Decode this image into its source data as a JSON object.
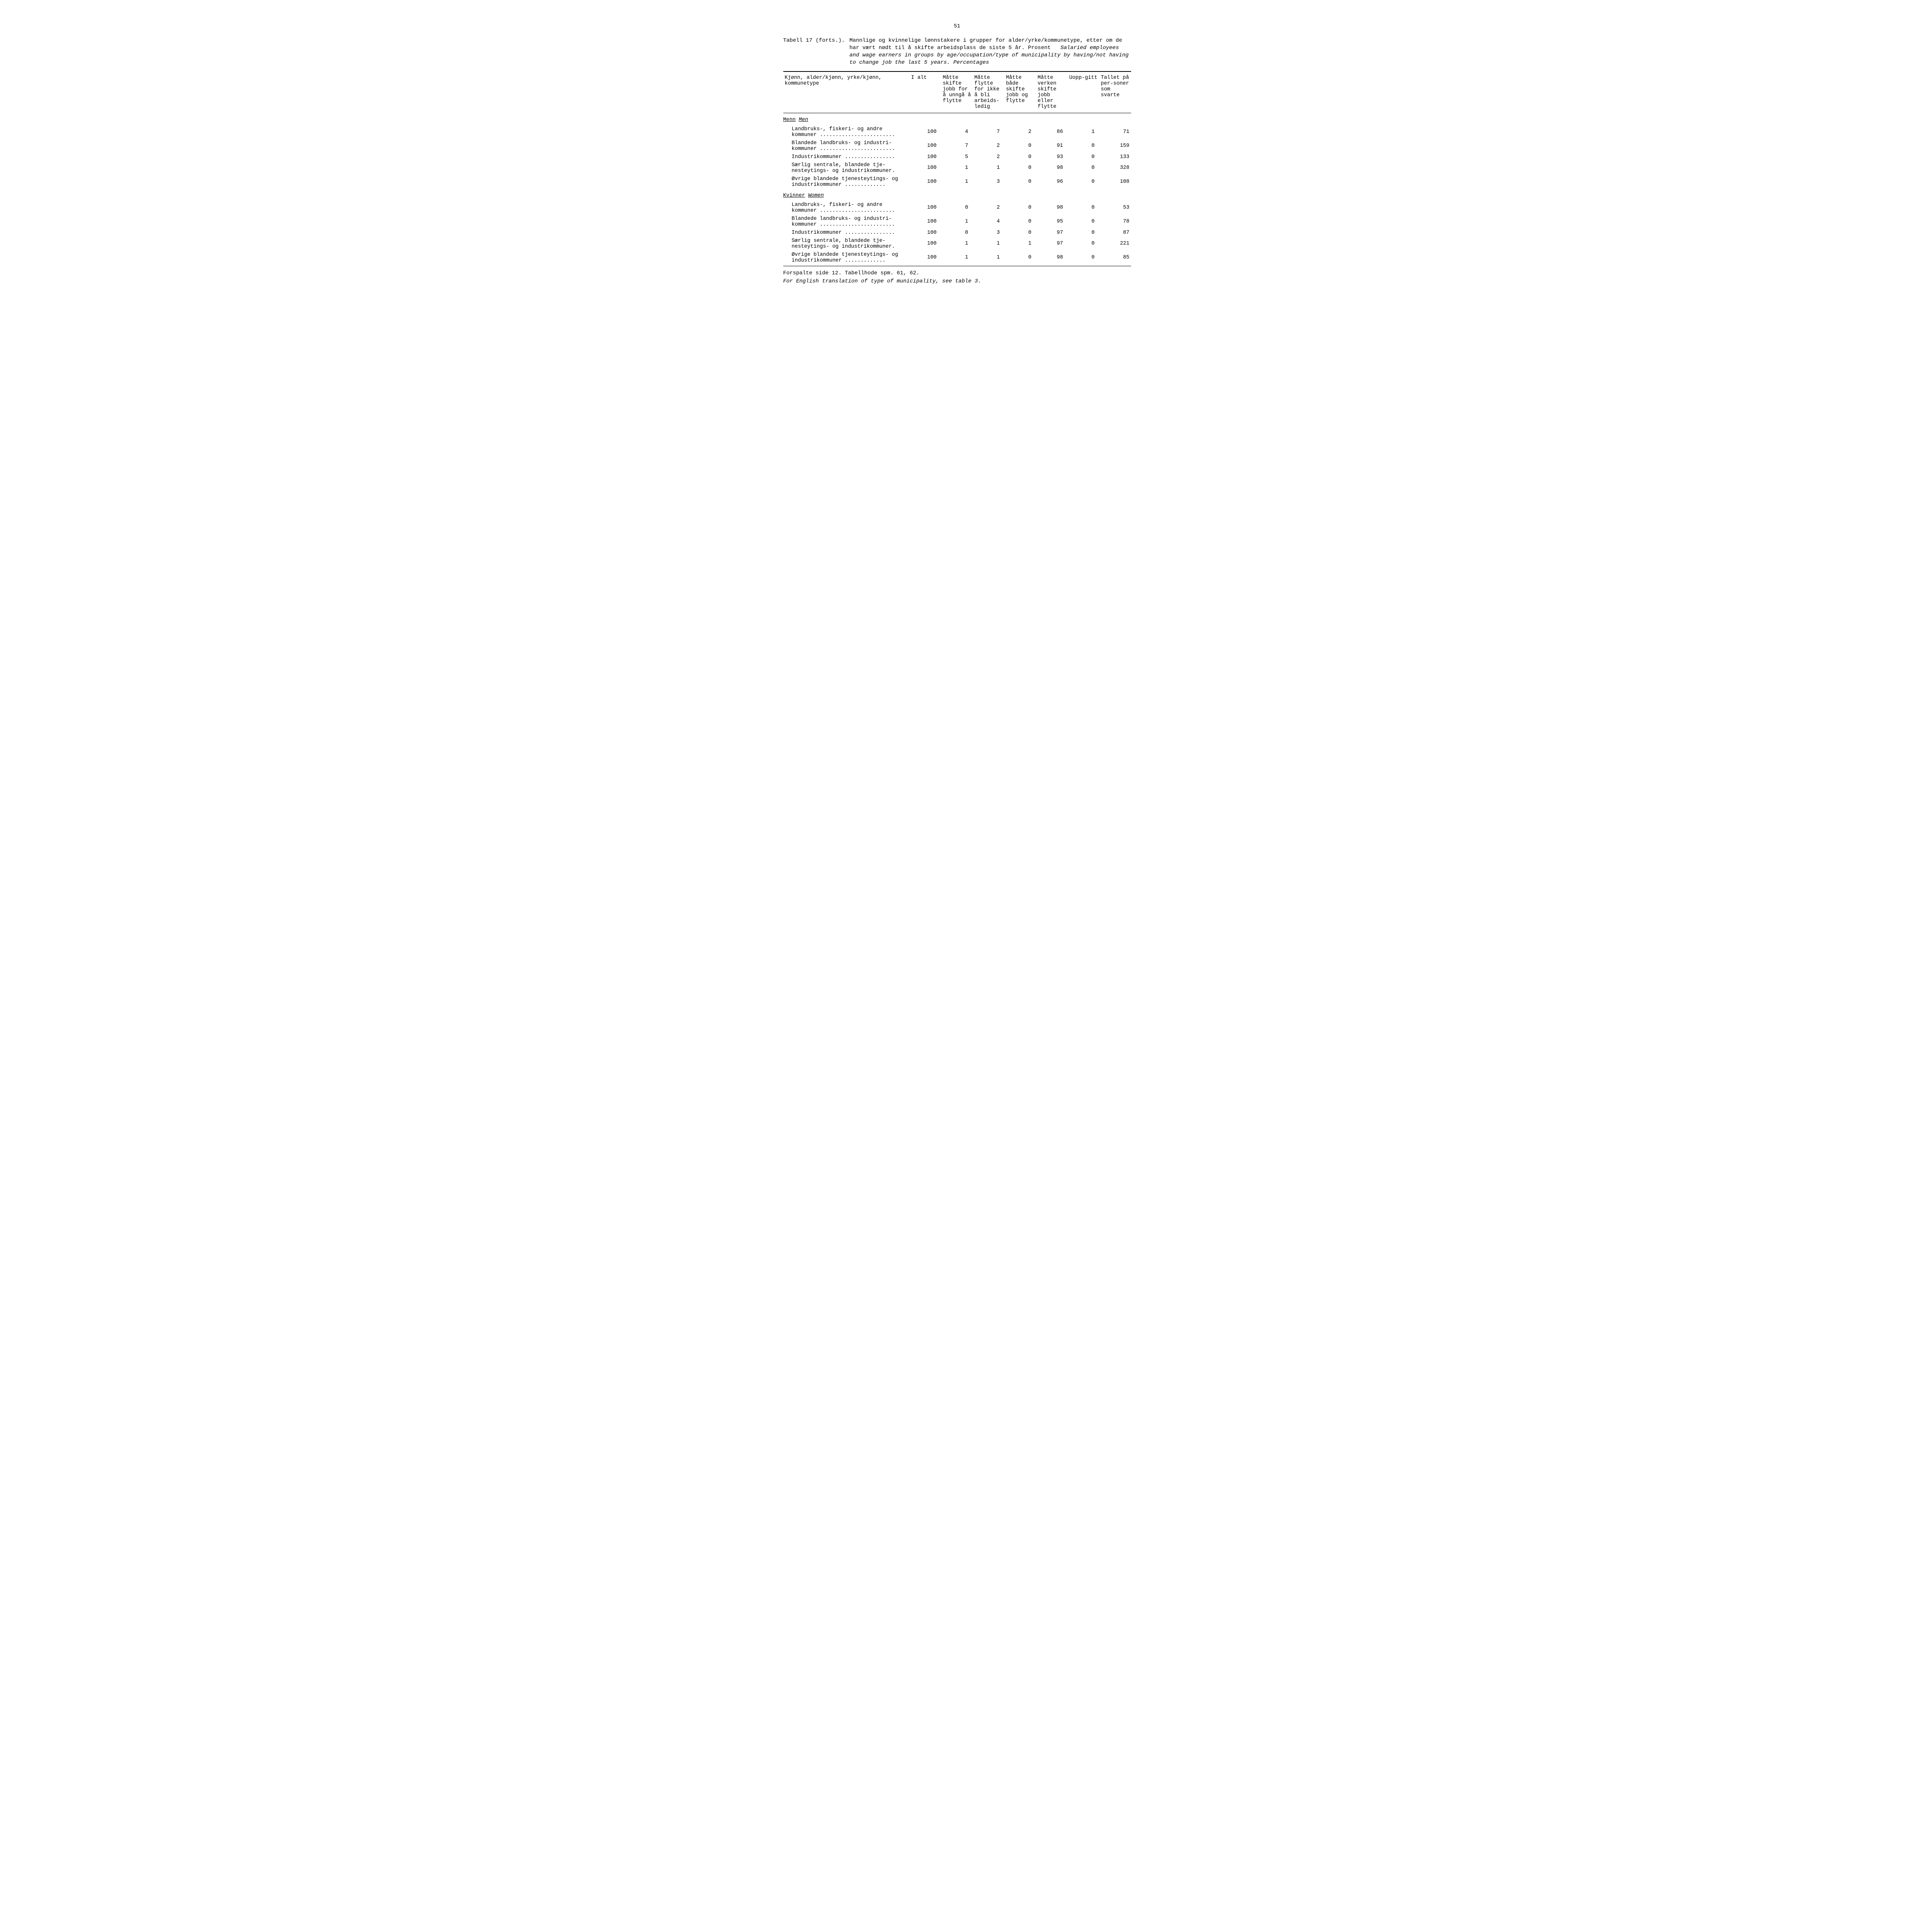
{
  "page_number": "51",
  "caption": {
    "label": "Tabell 17 (forts.).",
    "norwegian": "Mannlige og kvinnelige lønnstakere i grupper for alder/yrke/kommunetype, etter om de har vært nødt til å skifte arbeidsplass de siste 5 år.  Prosent",
    "english": "Salaried employees and wage earners in groups by age/occupation/type of municipality by having/not having to change job the last 5 years.  Percentages"
  },
  "columns": [
    "Kjønn, alder/kjønn, yrke/kjønn, kommunetype",
    "I alt",
    "Måtte skifte jobb for å unngå å flytte",
    "Måtte flytte for ikke å bli arbeids-ledig",
    "Måtte både skifte jobb og flytte",
    "Måtte verken skifte jobb eller flytte",
    "Uopp-gitt",
    "Tallet på per-soner som svarte"
  ],
  "sections": [
    {
      "name_no": "Menn",
      "name_en": "Men",
      "rows": [
        {
          "label": "Landbruks-, fiskeri- og andre kommuner ........................",
          "values": [
            "100",
            "4",
            "7",
            "2",
            "86",
            "1",
            "71"
          ]
        },
        {
          "label": "Blandede landbruks- og industri-kommuner ........................",
          "values": [
            "100",
            "7",
            "2",
            "0",
            "91",
            "0",
            "159"
          ]
        },
        {
          "label": "Industrikommuner ................",
          "values": [
            "100",
            "5",
            "2",
            "0",
            "93",
            "0",
            "133"
          ]
        },
        {
          "label": "Særlig sentrale, blandede tje-nesteytings- og industrikommuner.",
          "values": [
            "100",
            "1",
            "1",
            "0",
            "98",
            "0",
            "328"
          ]
        },
        {
          "label": "Øvrige blandede tjenesteytings- og industrikommuner .............",
          "values": [
            "100",
            "1",
            "3",
            "0",
            "96",
            "0",
            "108"
          ]
        }
      ]
    },
    {
      "name_no": "Kvinner",
      "name_en": "Women",
      "rows": [
        {
          "label": "Landbruks-, fiskeri- og andre kommuner ........................",
          "values": [
            "100",
            "0",
            "2",
            "0",
            "98",
            "0",
            "53"
          ]
        },
        {
          "label": "Blandede landbruks- og industri-kommuner ........................",
          "values": [
            "100",
            "1",
            "4",
            "0",
            "95",
            "0",
            "78"
          ]
        },
        {
          "label": "Industrikommuner ................",
          "values": [
            "100",
            "0",
            "3",
            "0",
            "97",
            "0",
            "87"
          ]
        },
        {
          "label": "Særlig sentrale, blandede tje-nesteytings- og industrikommuner.",
          "values": [
            "100",
            "1",
            "1",
            "1",
            "97",
            "0",
            "221"
          ]
        },
        {
          "label": "Øvrige blandede tjenesteytings- og industrikommuner .............",
          "values": [
            "100",
            "1",
            "1",
            "0",
            "98",
            "0",
            "85"
          ]
        }
      ]
    }
  ],
  "footnotes": {
    "line1": "Forspalte side  12.  Tabellhode spm. 61, 62.",
    "line2": "For English translation of type of municipality, see table 3."
  },
  "styling": {
    "font_family": "Courier New",
    "background_color": "#ffffff",
    "text_color": "#000000",
    "rule_color": "#000000"
  }
}
